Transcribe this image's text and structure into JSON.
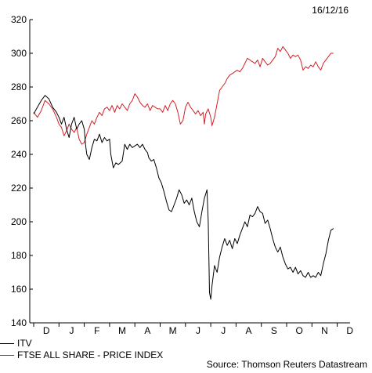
{
  "date_label": "16/12/16",
  "source_label": "Source: Thomson Reuters Datastream",
  "legend": [
    {
      "label": "ITV",
      "color": "#000000"
    },
    {
      "label": "FTSE ALL SHARE - PRICE INDEX",
      "color": "#d32027"
    }
  ],
  "chart_data": {
    "type": "line",
    "title": "",
    "xlabel": "",
    "ylabel": "",
    "ylim": [
      140,
      320
    ],
    "yticks": [
      140,
      160,
      180,
      200,
      220,
      240,
      260,
      280,
      300,
      320
    ],
    "x_tick_labels": [
      "D",
      "J",
      "F",
      "M",
      "A",
      "M",
      "J",
      "J",
      "A",
      "S",
      "O",
      "N",
      "D"
    ],
    "x_unit": "months since start of December 2015",
    "grid": false,
    "series": [
      {
        "name": "ITV",
        "color": "#000000",
        "points": [
          [
            0.0,
            264
          ],
          [
            0.15,
            268
          ],
          [
            0.3,
            272
          ],
          [
            0.45,
            275
          ],
          [
            0.6,
            273
          ],
          [
            0.75,
            268
          ],
          [
            0.9,
            265
          ],
          [
            1.0,
            262
          ],
          [
            1.1,
            258
          ],
          [
            1.2,
            262
          ],
          [
            1.3,
            255
          ],
          [
            1.4,
            250
          ],
          [
            1.5,
            258
          ],
          [
            1.6,
            262
          ],
          [
            1.7,
            255
          ],
          [
            1.8,
            258
          ],
          [
            1.9,
            260
          ],
          [
            2.0,
            255
          ],
          [
            2.05,
            246
          ],
          [
            2.1,
            240
          ],
          [
            2.2,
            237
          ],
          [
            2.3,
            244
          ],
          [
            2.4,
            249
          ],
          [
            2.5,
            248
          ],
          [
            2.6,
            252
          ],
          [
            2.7,
            247
          ],
          [
            2.8,
            250
          ],
          [
            2.9,
            248
          ],
          [
            3.0,
            249
          ],
          [
            3.05,
            240
          ],
          [
            3.15,
            232
          ],
          [
            3.25,
            235
          ],
          [
            3.35,
            234
          ],
          [
            3.5,
            236
          ],
          [
            3.6,
            246
          ],
          [
            3.7,
            243
          ],
          [
            3.8,
            246
          ],
          [
            3.9,
            244
          ],
          [
            4.0,
            245
          ],
          [
            4.1,
            246
          ],
          [
            4.2,
            244
          ],
          [
            4.3,
            246
          ],
          [
            4.4,
            243
          ],
          [
            4.5,
            241
          ],
          [
            4.55,
            238
          ],
          [
            4.65,
            236
          ],
          [
            4.75,
            237
          ],
          [
            4.85,
            232
          ],
          [
            4.95,
            226
          ],
          [
            5.05,
            223
          ],
          [
            5.15,
            218
          ],
          [
            5.25,
            212
          ],
          [
            5.35,
            207
          ],
          [
            5.45,
            206
          ],
          [
            5.55,
            210
          ],
          [
            5.65,
            214
          ],
          [
            5.75,
            219
          ],
          [
            5.85,
            216
          ],
          [
            5.95,
            211
          ],
          [
            6.05,
            213
          ],
          [
            6.15,
            210
          ],
          [
            6.25,
            214
          ],
          [
            6.35,
            206
          ],
          [
            6.45,
            200
          ],
          [
            6.55,
            197
          ],
          [
            6.65,
            206
          ],
          [
            6.75,
            214
          ],
          [
            6.85,
            219
          ],
          [
            6.9,
            200
          ],
          [
            6.95,
            158
          ],
          [
            7.0,
            154
          ],
          [
            7.05,
            162
          ],
          [
            7.15,
            174
          ],
          [
            7.25,
            170
          ],
          [
            7.35,
            179
          ],
          [
            7.45,
            185
          ],
          [
            7.55,
            190
          ],
          [
            7.65,
            186
          ],
          [
            7.75,
            189
          ],
          [
            7.85,
            184
          ],
          [
            7.95,
            190
          ],
          [
            8.05,
            187
          ],
          [
            8.15,
            192
          ],
          [
            8.25,
            196
          ],
          [
            8.35,
            200
          ],
          [
            8.45,
            197
          ],
          [
            8.55,
            204
          ],
          [
            8.65,
            203
          ],
          [
            8.75,
            205
          ],
          [
            8.85,
            209
          ],
          [
            8.95,
            206
          ],
          [
            9.05,
            205
          ],
          [
            9.15,
            199
          ],
          [
            9.25,
            201
          ],
          [
            9.35,
            196
          ],
          [
            9.45,
            190
          ],
          [
            9.55,
            185
          ],
          [
            9.65,
            182
          ],
          [
            9.75,
            185
          ],
          [
            9.85,
            179
          ],
          [
            9.95,
            175
          ],
          [
            10.05,
            172
          ],
          [
            10.15,
            173
          ],
          [
            10.25,
            170
          ],
          [
            10.35,
            173
          ],
          [
            10.45,
            169
          ],
          [
            10.55,
            171
          ],
          [
            10.65,
            168
          ],
          [
            10.75,
            167
          ],
          [
            10.85,
            170
          ],
          [
            10.95,
            167
          ],
          [
            11.05,
            168
          ],
          [
            11.15,
            167
          ],
          [
            11.25,
            170
          ],
          [
            11.35,
            168
          ],
          [
            11.45,
            175
          ],
          [
            11.55,
            181
          ],
          [
            11.65,
            189
          ],
          [
            11.75,
            195
          ],
          [
            11.85,
            196
          ]
        ]
      },
      {
        "name": "FTSE ALL SHARE - PRICE INDEX",
        "color": "#d32027",
        "points": [
          [
            0.0,
            265
          ],
          [
            0.15,
            262
          ],
          [
            0.3,
            266
          ],
          [
            0.45,
            272
          ],
          [
            0.6,
            270
          ],
          [
            0.75,
            267
          ],
          [
            0.9,
            262
          ],
          [
            1.0,
            258
          ],
          [
            1.1,
            256
          ],
          [
            1.2,
            251
          ],
          [
            1.3,
            254
          ],
          [
            1.4,
            258
          ],
          [
            1.5,
            255
          ],
          [
            1.6,
            253
          ],
          [
            1.7,
            256
          ],
          [
            1.8,
            249
          ],
          [
            1.9,
            246
          ],
          [
            2.0,
            247
          ],
          [
            2.1,
            252
          ],
          [
            2.2,
            256
          ],
          [
            2.3,
            260
          ],
          [
            2.4,
            258
          ],
          [
            2.5,
            262
          ],
          [
            2.6,
            265
          ],
          [
            2.7,
            263
          ],
          [
            2.8,
            267
          ],
          [
            2.9,
            268
          ],
          [
            3.0,
            266
          ],
          [
            3.1,
            269
          ],
          [
            3.2,
            265
          ],
          [
            3.3,
            269
          ],
          [
            3.4,
            267
          ],
          [
            3.5,
            270
          ],
          [
            3.6,
            268
          ],
          [
            3.7,
            266
          ],
          [
            3.8,
            270
          ],
          [
            3.9,
            272
          ],
          [
            4.0,
            276
          ],
          [
            4.1,
            274
          ],
          [
            4.2,
            271
          ],
          [
            4.3,
            269
          ],
          [
            4.4,
            268
          ],
          [
            4.5,
            270
          ],
          [
            4.6,
            266
          ],
          [
            4.7,
            269
          ],
          [
            4.8,
            268
          ],
          [
            4.9,
            267
          ],
          [
            5.0,
            267
          ],
          [
            5.1,
            265
          ],
          [
            5.2,
            269
          ],
          [
            5.3,
            266
          ],
          [
            5.4,
            270
          ],
          [
            5.5,
            272
          ],
          [
            5.6,
            270
          ],
          [
            5.7,
            265
          ],
          [
            5.8,
            258
          ],
          [
            5.9,
            260
          ],
          [
            6.0,
            268
          ],
          [
            6.1,
            271
          ],
          [
            6.2,
            268
          ],
          [
            6.3,
            266
          ],
          [
            6.4,
            264
          ],
          [
            6.5,
            266
          ],
          [
            6.6,
            263
          ],
          [
            6.7,
            265
          ],
          [
            6.75,
            258
          ],
          [
            6.8,
            264
          ],
          [
            6.9,
            267
          ],
          [
            7.0,
            262
          ],
          [
            7.05,
            257
          ],
          [
            7.15,
            262
          ],
          [
            7.25,
            270
          ],
          [
            7.35,
            278
          ],
          [
            7.45,
            280
          ],
          [
            7.55,
            282
          ],
          [
            7.65,
            285
          ],
          [
            7.75,
            287
          ],
          [
            7.85,
            288
          ],
          [
            7.95,
            289
          ],
          [
            8.05,
            290
          ],
          [
            8.15,
            289
          ],
          [
            8.25,
            291
          ],
          [
            8.35,
            294
          ],
          [
            8.45,
            297
          ],
          [
            8.55,
            296
          ],
          [
            8.65,
            295
          ],
          [
            8.75,
            294
          ],
          [
            8.85,
            296
          ],
          [
            8.95,
            292
          ],
          [
            9.05,
            297
          ],
          [
            9.15,
            295
          ],
          [
            9.25,
            293
          ],
          [
            9.35,
            294
          ],
          [
            9.45,
            296
          ],
          [
            9.55,
            298
          ],
          [
            9.65,
            303
          ],
          [
            9.75,
            301
          ],
          [
            9.85,
            304
          ],
          [
            9.95,
            302
          ],
          [
            10.05,
            300
          ],
          [
            10.15,
            297
          ],
          [
            10.25,
            299
          ],
          [
            10.35,
            298
          ],
          [
            10.45,
            299
          ],
          [
            10.55,
            296
          ],
          [
            10.65,
            290
          ],
          [
            10.75,
            292
          ],
          [
            10.85,
            291
          ],
          [
            10.95,
            293
          ],
          [
            11.05,
            292
          ],
          [
            11.15,
            295
          ],
          [
            11.25,
            292
          ],
          [
            11.35,
            290
          ],
          [
            11.45,
            294
          ],
          [
            11.55,
            296
          ],
          [
            11.65,
            298
          ],
          [
            11.75,
            300
          ],
          [
            11.85,
            300
          ]
        ]
      }
    ]
  }
}
